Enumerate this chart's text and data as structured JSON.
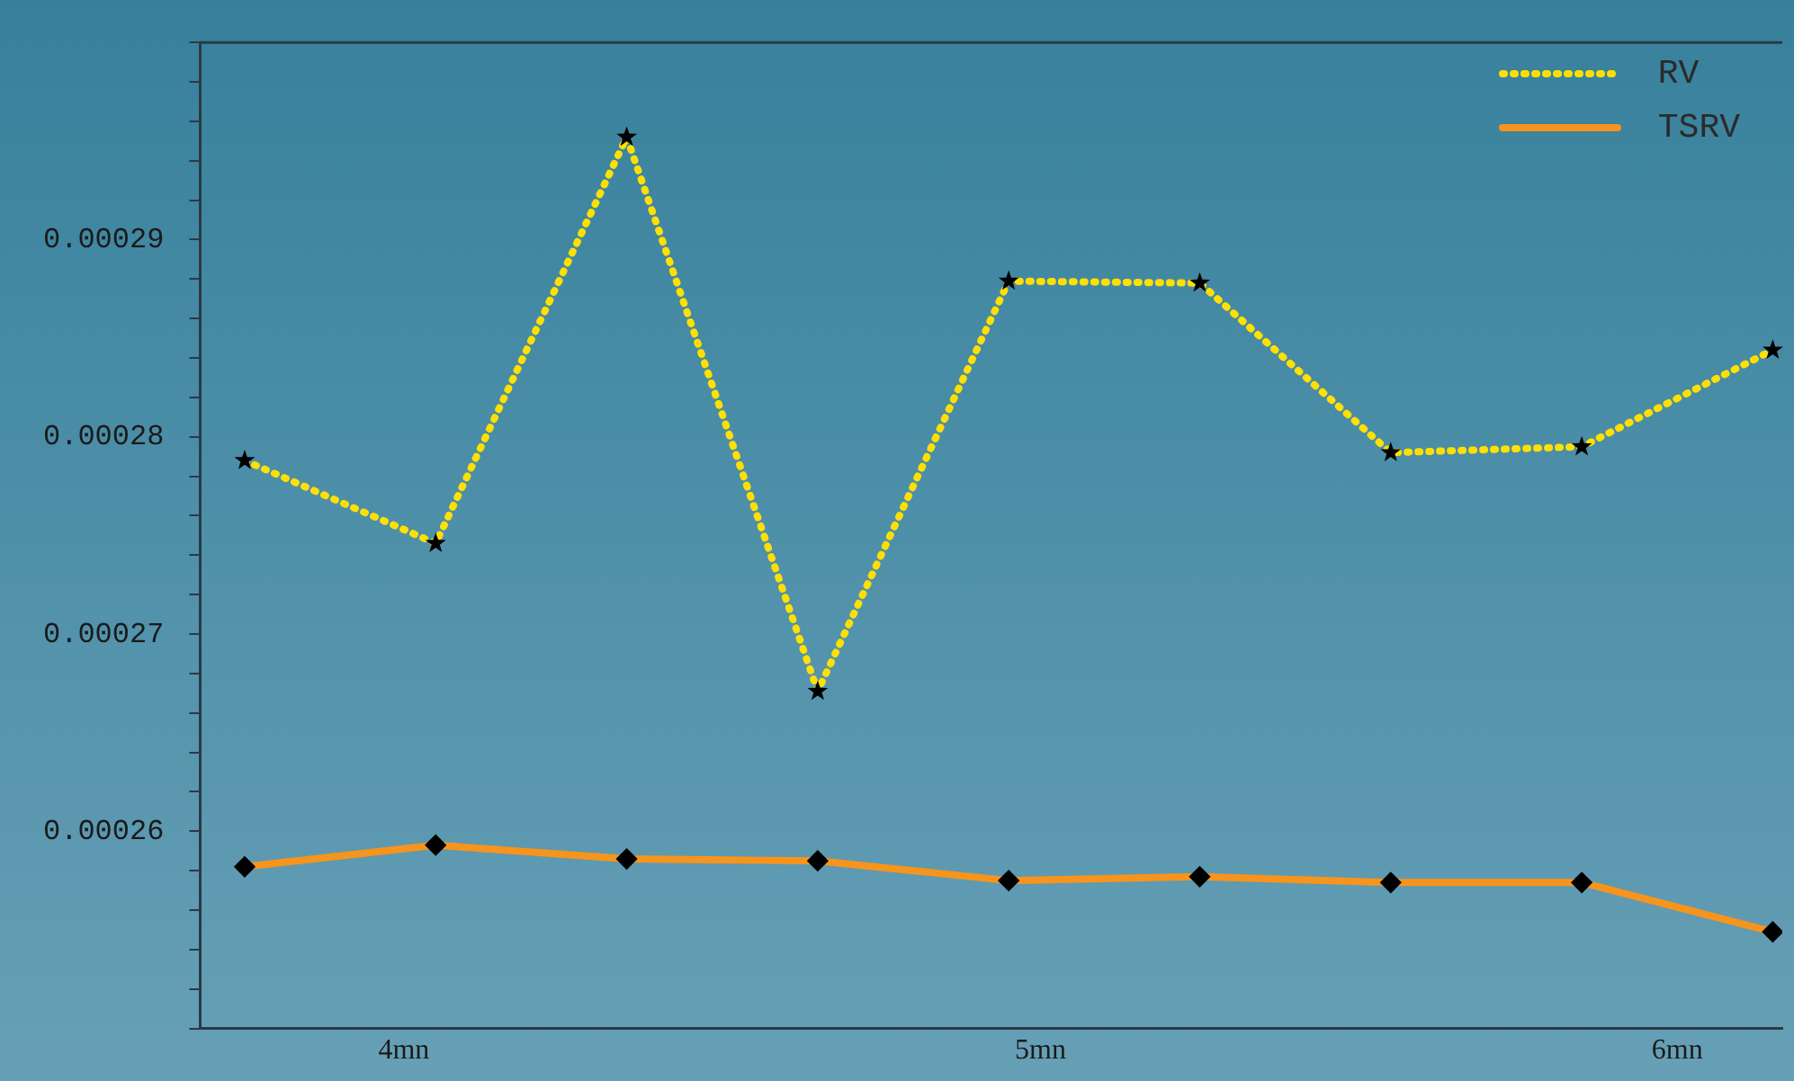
{
  "chart_data": {
    "type": "line",
    "x": [
      3.75,
      4.05,
      4.35,
      4.65,
      4.95,
      5.25,
      5.55,
      5.85,
      6.15
    ],
    "series": [
      {
        "name": "RV",
        "color": "#ffe000",
        "marker": "star",
        "line_style": "dotted",
        "values": [
          0.0002788,
          0.0002746,
          0.0002952,
          0.0002671,
          0.0002879,
          0.0002878,
          0.0002792,
          0.0002795,
          0.0002844
        ]
      },
      {
        "name": "TSRV",
        "color": "#f7941d",
        "marker": "diamond",
        "line_style": "solid",
        "values": [
          0.0002582,
          0.0002593,
          0.0002586,
          0.0002585,
          0.0002575,
          0.0002577,
          0.0002574,
          0.0002574,
          0.0002549
        ]
      }
    ],
    "xlim": [
      3.68,
      6.165
    ],
    "xticks": [
      {
        "value": 4,
        "label": "4mn"
      },
      {
        "value": 5,
        "label": "5mn"
      },
      {
        "value": 6,
        "label": "6mn"
      }
    ],
    "ylim": [
      0.00025,
      0.0003
    ],
    "yticks": [
      {
        "value": 0.00025,
        "label": null
      },
      {
        "value": 0.000252,
        "label": null
      },
      {
        "value": 0.000254,
        "label": null
      },
      {
        "value": 0.000256,
        "label": null
      },
      {
        "value": 0.000258,
        "label": null
      },
      {
        "value": 0.00026,
        "label": "0.00026"
      },
      {
        "value": 0.000262,
        "label": null
      },
      {
        "value": 0.000264,
        "label": null
      },
      {
        "value": 0.000266,
        "label": null
      },
      {
        "value": 0.000268,
        "label": null
      },
      {
        "value": 0.00027,
        "label": "0.00027"
      },
      {
        "value": 0.000272,
        "label": null
      },
      {
        "value": 0.000274,
        "label": null
      },
      {
        "value": 0.000276,
        "label": null
      },
      {
        "value": 0.000278,
        "label": null
      },
      {
        "value": 0.00028,
        "label": "0.00028"
      },
      {
        "value": 0.000282,
        "label": null
      },
      {
        "value": 0.000284,
        "label": null
      },
      {
        "value": 0.000286,
        "label": null
      },
      {
        "value": 0.000288,
        "label": null
      },
      {
        "value": 0.00029,
        "label": "0.00029"
      },
      {
        "value": 0.000292,
        "label": null
      },
      {
        "value": 0.000294,
        "label": null
      },
      {
        "value": 0.000296,
        "label": null
      },
      {
        "value": 0.000298,
        "label": null
      },
      {
        "value": 0.0003,
        "label": null
      }
    ],
    "grid": false,
    "legend": "top right"
  }
}
